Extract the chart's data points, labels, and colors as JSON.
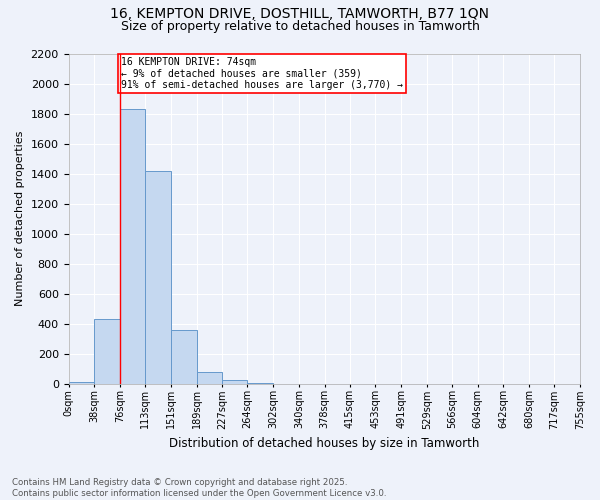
{
  "title_line1": "16, KEMPTON DRIVE, DOSTHILL, TAMWORTH, B77 1QN",
  "title_line2": "Size of property relative to detached houses in Tamworth",
  "xlabel": "Distribution of detached houses by size in Tamworth",
  "ylabel": "Number of detached properties",
  "bar_color": "#c5d8f0",
  "bar_edge_color": "#6699cc",
  "annotation_line1": "16 KEMPTON DRIVE: 74sqm",
  "annotation_line2": "← 9% of detached houses are smaller (359)",
  "annotation_line3": "91% of semi-detached houses are larger (3,770) →",
  "property_line_x": 76,
  "footer_line1": "Contains HM Land Registry data © Crown copyright and database right 2025.",
  "footer_line2": "Contains public sector information licensed under the Open Government Licence v3.0.",
  "background_color": "#eef2fa",
  "grid_color": "#ffffff",
  "categories": [
    "0sqm",
    "38sqm",
    "76sqm",
    "113sqm",
    "151sqm",
    "189sqm",
    "227sqm",
    "264sqm",
    "302sqm",
    "340sqm",
    "378sqm",
    "415sqm",
    "453sqm",
    "491sqm",
    "529sqm",
    "566sqm",
    "604sqm",
    "642sqm",
    "680sqm",
    "717sqm",
    "755sqm"
  ],
  "bin_edges": [
    0,
    38,
    76,
    113,
    151,
    189,
    227,
    264,
    302,
    340,
    378,
    415,
    453,
    491,
    529,
    566,
    604,
    642,
    680,
    717,
    755
  ],
  "values": [
    10,
    430,
    1830,
    1420,
    360,
    75,
    25,
    5,
    0,
    0,
    0,
    0,
    0,
    0,
    0,
    0,
    0,
    0,
    0,
    0
  ],
  "ylim": [
    0,
    2200
  ],
  "yticks": [
    0,
    200,
    400,
    600,
    800,
    1000,
    1200,
    1400,
    1600,
    1800,
    2000,
    2200
  ]
}
